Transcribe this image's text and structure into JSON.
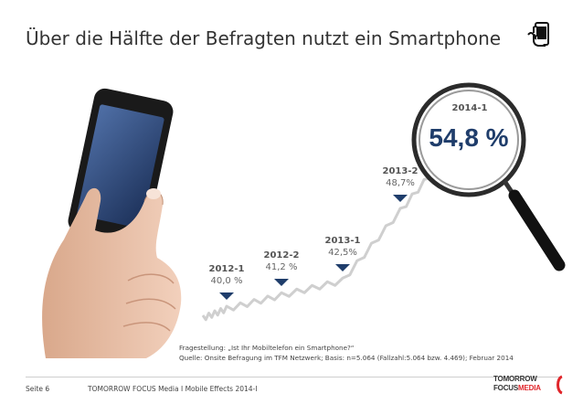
{
  "header": {
    "title": "Über die Hälfte der Befragten nutzt ein Smartphone",
    "icon": "smartphone-touch-icon"
  },
  "chart_data": {
    "type": "line",
    "categories": [
      "2012-1",
      "2012-2",
      "2013-1",
      "2013-2",
      "2014-1"
    ],
    "values": [
      40.0,
      41.2,
      42.5,
      48.7,
      54.8
    ],
    "value_labels": [
      "40,0 %",
      "41,2 %",
      "42,5%",
      "48,7%",
      "54,8 %"
    ],
    "highlight": "2014-1",
    "colors": {
      "line": "#cfcfcf",
      "marker": "#1f3d6b",
      "highlight": "#1f3d6b"
    }
  },
  "note": {
    "question": "Fragestellung: „Ist Ihr Mobiltelefon ein Smartphone?“",
    "source": "Quelle: Onsite Befragung im TFM Netzwerk; Basis: n=5.064 (Fallzahl:5.064 bzw. 4.469); Februar 2014"
  },
  "footer": {
    "page": "Seite 6",
    "text": "TOMORROW FOCUS Media  I  Mobile Effects 2014-I"
  },
  "logo": {
    "line1": "TOMORROW",
    "line2_a": "FOCUS",
    "line2_b": "MEDIA",
    "accent": "#e0262b"
  }
}
